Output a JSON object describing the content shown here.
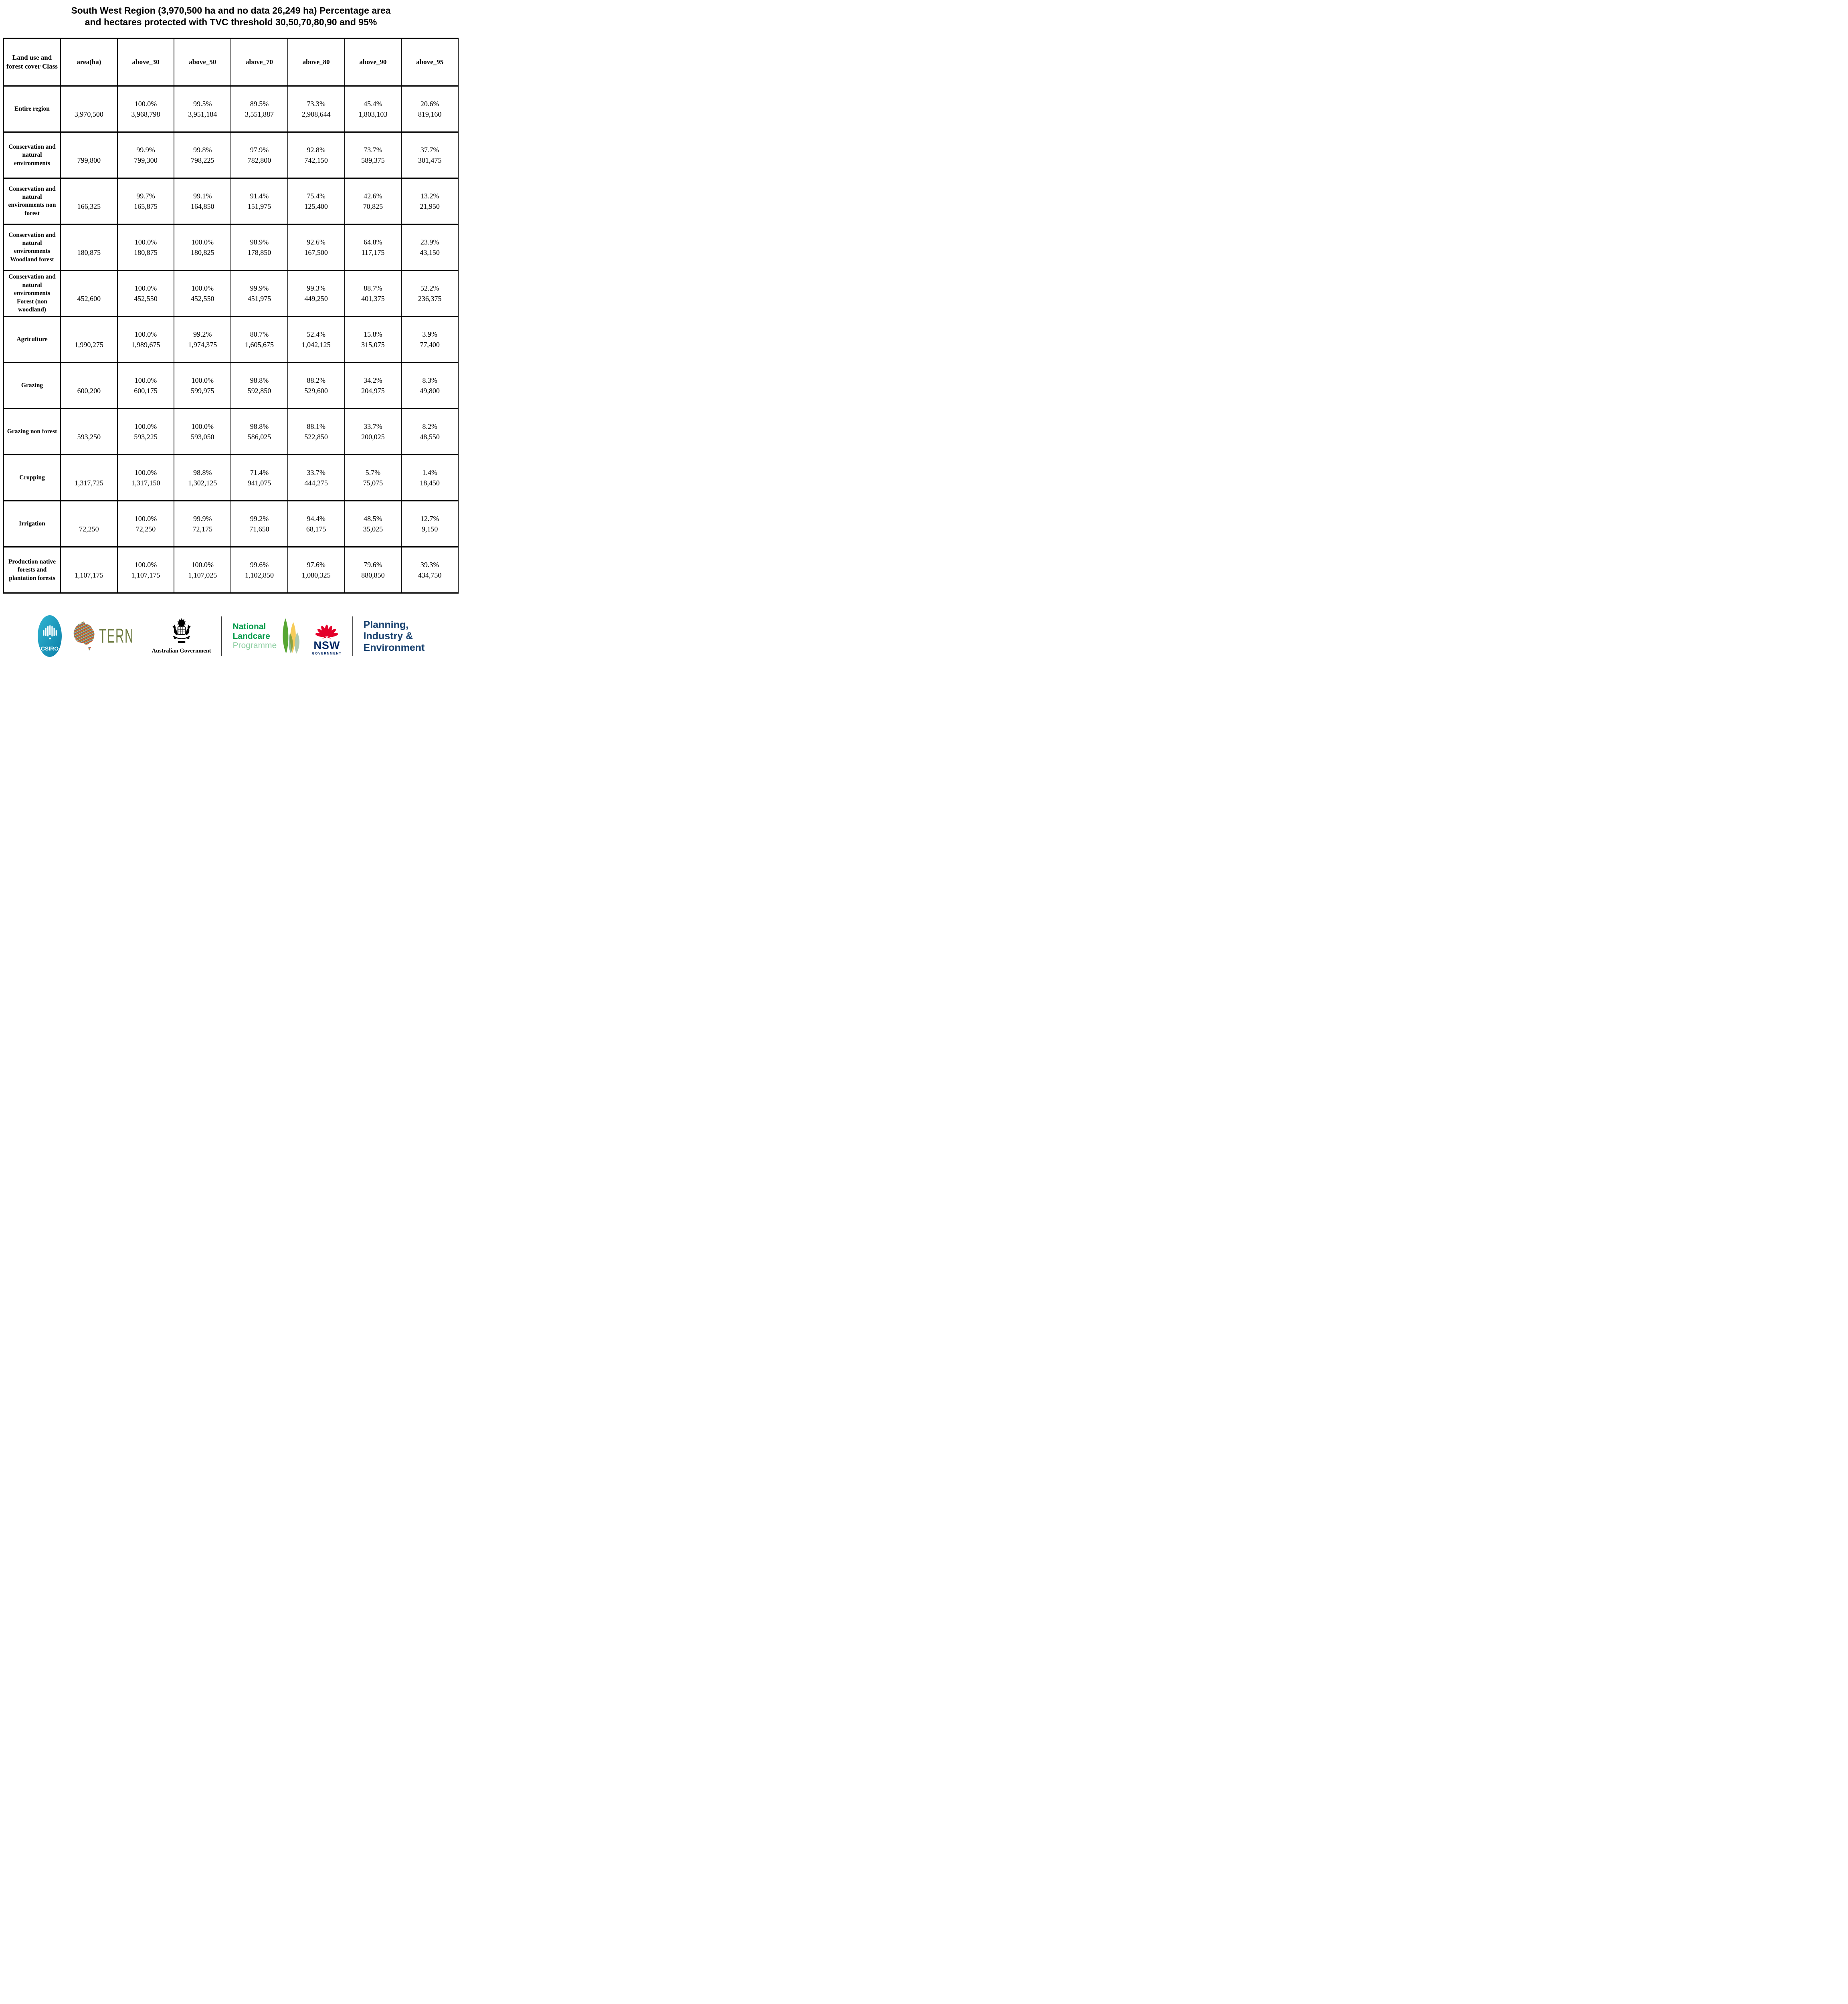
{
  "title": {
    "line1": "South West Region (3,970,500 ha and no data 26,249 ha) Percentage area",
    "line2": "and hectares protected with TVC threshold 30,50,70,80,90 and 95%"
  },
  "table": {
    "columns": [
      "Land use and forest cover Class",
      "area(ha)",
      "above_30",
      "above_50",
      "above_70",
      "above_80",
      "above_90",
      "above_95"
    ],
    "rows": [
      {
        "label": "Entire region",
        "area": "3,970,500",
        "thresholds": [
          {
            "pct": "100.0%",
            "ha": "3,968,798"
          },
          {
            "pct": "99.5%",
            "ha": "3,951,184"
          },
          {
            "pct": "89.5%",
            "ha": "3,551,887"
          },
          {
            "pct": "73.3%",
            "ha": "2,908,644"
          },
          {
            "pct": "45.4%",
            "ha": "1,803,103"
          },
          {
            "pct": "20.6%",
            "ha": "819,160"
          }
        ]
      },
      {
        "label": "Conservation and natural environments",
        "area": "799,800",
        "thresholds": [
          {
            "pct": "99.9%",
            "ha": "799,300"
          },
          {
            "pct": "99.8%",
            "ha": "798,225"
          },
          {
            "pct": "97.9%",
            "ha": "782,800"
          },
          {
            "pct": "92.8%",
            "ha": "742,150"
          },
          {
            "pct": "73.7%",
            "ha": "589,375"
          },
          {
            "pct": "37.7%",
            "ha": "301,475"
          }
        ]
      },
      {
        "label": "Conservation and natural environments non forest",
        "area": "166,325",
        "thresholds": [
          {
            "pct": "99.7%",
            "ha": "165,875"
          },
          {
            "pct": "99.1%",
            "ha": "164,850"
          },
          {
            "pct": "91.4%",
            "ha": "151,975"
          },
          {
            "pct": "75.4%",
            "ha": "125,400"
          },
          {
            "pct": "42.6%",
            "ha": "70,825"
          },
          {
            "pct": "13.2%",
            "ha": "21,950"
          }
        ]
      },
      {
        "label": "Conservation and natural environments Woodland forest",
        "area": "180,875",
        "thresholds": [
          {
            "pct": "100.0%",
            "ha": "180,875"
          },
          {
            "pct": "100.0%",
            "ha": "180,825"
          },
          {
            "pct": "98.9%",
            "ha": "178,850"
          },
          {
            "pct": "92.6%",
            "ha": "167,500"
          },
          {
            "pct": "64.8%",
            "ha": "117,175"
          },
          {
            "pct": "23.9%",
            "ha": "43,150"
          }
        ]
      },
      {
        "label": "Conservation and natural environments Forest (non woodland)",
        "area": "452,600",
        "thresholds": [
          {
            "pct": "100.0%",
            "ha": "452,550"
          },
          {
            "pct": "100.0%",
            "ha": "452,550"
          },
          {
            "pct": "99.9%",
            "ha": "451,975"
          },
          {
            "pct": "99.3%",
            "ha": "449,250"
          },
          {
            "pct": "88.7%",
            "ha": "401,375"
          },
          {
            "pct": "52.2%",
            "ha": "236,375"
          }
        ]
      },
      {
        "label": "Agriculture",
        "area": "1,990,275",
        "thresholds": [
          {
            "pct": "100.0%",
            "ha": "1,989,675"
          },
          {
            "pct": "99.2%",
            "ha": "1,974,375"
          },
          {
            "pct": "80.7%",
            "ha": "1,605,675"
          },
          {
            "pct": "52.4%",
            "ha": "1,042,125"
          },
          {
            "pct": "15.8%",
            "ha": "315,075"
          },
          {
            "pct": "3.9%",
            "ha": "77,400"
          }
        ]
      },
      {
        "label": "Grazing",
        "area": "600,200",
        "thresholds": [
          {
            "pct": "100.0%",
            "ha": "600,175"
          },
          {
            "pct": "100.0%",
            "ha": "599,975"
          },
          {
            "pct": "98.8%",
            "ha": "592,850"
          },
          {
            "pct": "88.2%",
            "ha": "529,600"
          },
          {
            "pct": "34.2%",
            "ha": "204,975"
          },
          {
            "pct": "8.3%",
            "ha": "49,800"
          }
        ]
      },
      {
        "label": "Grazing non forest",
        "area": "593,250",
        "thresholds": [
          {
            "pct": "100.0%",
            "ha": "593,225"
          },
          {
            "pct": "100.0%",
            "ha": "593,050"
          },
          {
            "pct": "98.8%",
            "ha": "586,025"
          },
          {
            "pct": "88.1%",
            "ha": "522,850"
          },
          {
            "pct": "33.7%",
            "ha": "200,025"
          },
          {
            "pct": "8.2%",
            "ha": "48,550"
          }
        ]
      },
      {
        "label": "Cropping",
        "area": "1,317,725",
        "thresholds": [
          {
            "pct": "100.0%",
            "ha": "1,317,150"
          },
          {
            "pct": "98.8%",
            "ha": "1,302,125"
          },
          {
            "pct": "71.4%",
            "ha": "941,075"
          },
          {
            "pct": "33.7%",
            "ha": "444,275"
          },
          {
            "pct": "5.7%",
            "ha": "75,075"
          },
          {
            "pct": "1.4%",
            "ha": "18,450"
          }
        ]
      },
      {
        "label": "Irrigation",
        "area": "72,250",
        "thresholds": [
          {
            "pct": "100.0%",
            "ha": "72,250"
          },
          {
            "pct": "99.9%",
            "ha": "72,175"
          },
          {
            "pct": "99.2%",
            "ha": "71,650"
          },
          {
            "pct": "94.4%",
            "ha": "68,175"
          },
          {
            "pct": "48.5%",
            "ha": "35,025"
          },
          {
            "pct": "12.7%",
            "ha": "9,150"
          }
        ]
      },
      {
        "label": "Production native forests and plantation forests",
        "area": "1,107,175",
        "thresholds": [
          {
            "pct": "100.0%",
            "ha": "1,107,175"
          },
          {
            "pct": "100.0%",
            "ha": "1,107,025"
          },
          {
            "pct": "99.6%",
            "ha": "1,102,850"
          },
          {
            "pct": "97.6%",
            "ha": "1,080,325"
          },
          {
            "pct": "79.6%",
            "ha": "880,850"
          },
          {
            "pct": "39.3%",
            "ha": "434,750"
          }
        ]
      }
    ]
  },
  "footer": {
    "csiro": {
      "label": "CSIRO",
      "color": "#1699c2"
    },
    "tern": {
      "label": "TERN",
      "color": "#6e7b42"
    },
    "aus_gov": {
      "label": "Australian Government"
    },
    "landcare": {
      "line1": "National",
      "line2": "Landcare",
      "line3": "Programme",
      "green": "#009a49",
      "light_green": "#8fcfa3"
    },
    "nsw": {
      "label": "NSW",
      "sub_label": "GOVERNMENT",
      "red": "#e4002b",
      "navy": "#002664"
    },
    "dpie": {
      "line1": "Planning,",
      "line2": "Industry &",
      "line3": "Environment",
      "navy": "#17406e"
    }
  }
}
